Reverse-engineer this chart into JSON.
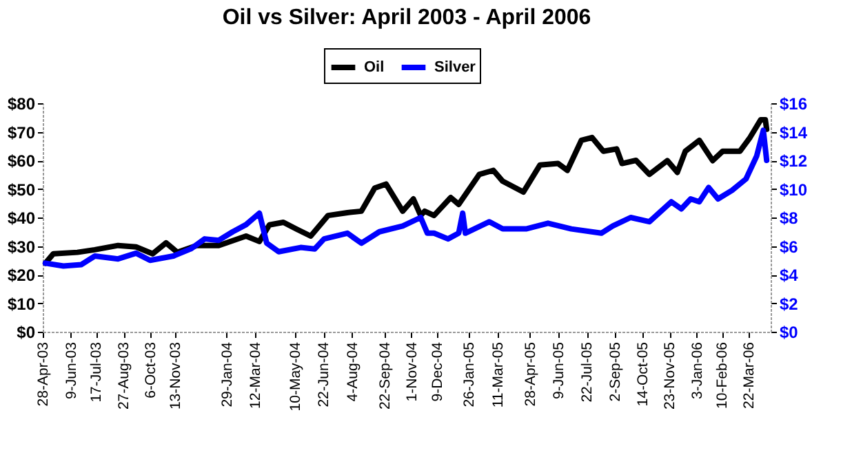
{
  "chart_data": {
    "type": "line",
    "title": "Oil vs Silver: April 2003 - April 2006",
    "legend": "top",
    "grid": false,
    "xlim": [
      "2003-04-28",
      "2006-04-24"
    ],
    "xticks": [
      {
        "value": "2003-04-28",
        "label": "28-Apr-03"
      },
      {
        "value": "2003-06-09",
        "label": "9-Jun-03"
      },
      {
        "value": "2003-07-17",
        "label": "17-Jul-03"
      },
      {
        "value": "2003-08-27",
        "label": "27-Aug-03"
      },
      {
        "value": "2003-10-06",
        "label": "6-Oct-03"
      },
      {
        "value": "2003-11-13",
        "label": "13-Nov-03"
      },
      {
        "value": "2004-01-29",
        "label": "29-Jan-04"
      },
      {
        "value": "2004-03-12",
        "label": "12-Mar-04"
      },
      {
        "value": "2004-05-10",
        "label": "10-May-04"
      },
      {
        "value": "2004-06-22",
        "label": "22-Jun-04"
      },
      {
        "value": "2004-08-04",
        "label": "4-Aug-04"
      },
      {
        "value": "2004-09-22",
        "label": "22-Sep-04"
      },
      {
        "value": "2004-11-01",
        "label": "1-Nov-04"
      },
      {
        "value": "2004-12-09",
        "label": "9-Dec-04"
      },
      {
        "value": "2005-01-26",
        "label": "26-Jan-05"
      },
      {
        "value": "2005-03-11",
        "label": "11-Mar-05"
      },
      {
        "value": "2005-04-28",
        "label": "28-Apr-05"
      },
      {
        "value": "2005-06-09",
        "label": "9-Jun-05"
      },
      {
        "value": "2005-07-22",
        "label": "22-Jul-05"
      },
      {
        "value": "2005-09-02",
        "label": "2-Sep-05"
      },
      {
        "value": "2005-10-14",
        "label": "14-Oct-05"
      },
      {
        "value": "2005-11-23",
        "label": "23-Nov-05"
      },
      {
        "value": "2006-01-03",
        "label": "3-Jan-06"
      },
      {
        "value": "2006-02-10",
        "label": "10-Feb-06"
      },
      {
        "value": "2006-03-22",
        "label": "22-Mar-06"
      }
    ],
    "ylim": [
      0,
      80
    ],
    "yticks": [
      {
        "value": 0,
        "label": "$0"
      },
      {
        "value": 10,
        "label": "$10"
      },
      {
        "value": 20,
        "label": "$20"
      },
      {
        "value": 30,
        "label": "$30"
      },
      {
        "value": 40,
        "label": "$40"
      },
      {
        "value": 50,
        "label": "$50"
      },
      {
        "value": 60,
        "label": "$60"
      },
      {
        "value": 70,
        "label": "$70"
      },
      {
        "value": 80,
        "label": "$80"
      }
    ],
    "y2lim": [
      0,
      16
    ],
    "y2ticks": [
      {
        "value": 0,
        "label": "$0"
      },
      {
        "value": 2,
        "label": "$2"
      },
      {
        "value": 4,
        "label": "$4"
      },
      {
        "value": 6,
        "label": "$6"
      },
      {
        "value": 8,
        "label": "$8"
      },
      {
        "value": 10,
        "label": "$10"
      },
      {
        "value": 12,
        "label": "$12"
      },
      {
        "value": 14,
        "label": "$14"
      },
      {
        "value": 16,
        "label": "$16"
      }
    ],
    "series": [
      {
        "name": "Oil",
        "color": "#000000",
        "x": [
          "2003-05-02",
          "2003-05-14",
          "2003-06-19",
          "2003-07-15",
          "2003-08-19",
          "2003-09-15",
          "2003-10-10",
          "2003-10-30",
          "2003-11-16",
          "2003-12-15",
          "2004-01-17",
          "2004-02-27",
          "2004-03-18",
          "2004-04-02",
          "2004-04-23",
          "2004-05-13",
          "2004-06-03",
          "2004-06-29",
          "2004-07-28",
          "2004-08-18",
          "2004-09-07",
          "2004-09-24",
          "2004-10-19",
          "2004-11-04",
          "2004-11-15",
          "2004-11-21",
          "2004-12-05",
          "2004-12-30",
          "2005-01-11",
          "2005-02-11",
          "2005-03-04",
          "2005-03-18",
          "2005-04-18",
          "2005-05-13",
          "2005-06-09",
          "2005-06-23",
          "2005-07-14",
          "2005-07-30",
          "2005-08-16",
          "2005-09-05",
          "2005-09-13",
          "2005-10-04",
          "2005-10-24",
          "2005-11-20",
          "2005-12-05",
          "2005-12-17",
          "2006-01-07",
          "2006-01-27",
          "2006-02-11",
          "2006-03-09",
          "2006-03-24",
          "2006-04-09",
          "2006-04-16",
          "2006-04-18"
        ],
        "values": [
          24,
          27.3,
          27.8,
          28.7,
          30.2,
          29.7,
          27.3,
          31.1,
          27.8,
          30.2,
          30.2,
          33.5,
          31.6,
          37.4,
          38.3,
          35.9,
          33.5,
          40.7,
          41.7,
          42.2,
          50.3,
          51.7,
          42.2,
          46.5,
          40.7,
          42.2,
          40.7,
          47,
          44.6,
          55.1,
          56.5,
          52.7,
          48.9,
          58.4,
          58.9,
          56.5,
          67,
          68,
          63.2,
          64,
          58.9,
          60,
          55.1,
          59.9,
          55.8,
          63.2,
          67,
          59.9,
          63.2,
          63.2,
          68,
          74.2,
          74.2,
          70.9
        ]
      },
      {
        "name": "Silver",
        "color": "#0000ff",
        "axis": "y2",
        "x": [
          "2003-05-02",
          "2003-05-29",
          "2003-06-25",
          "2003-07-15",
          "2003-08-19",
          "2003-09-15",
          "2003-10-06",
          "2003-11-10",
          "2003-12-06",
          "2003-12-27",
          "2004-01-17",
          "2004-02-07",
          "2004-02-27",
          "2004-03-18",
          "2004-03-29",
          "2004-04-16",
          "2004-05-19",
          "2004-06-09",
          "2004-06-23",
          "2004-07-28",
          "2004-08-18",
          "2004-09-14",
          "2004-10-19",
          "2004-11-15",
          "2004-11-25",
          "2004-12-05",
          "2004-12-26",
          "2005-01-11",
          "2005-01-17",
          "2005-01-21",
          "2005-02-26",
          "2005-03-18",
          "2005-04-22",
          "2005-05-25",
          "2005-06-29",
          "2005-08-13",
          "2005-08-30",
          "2005-09-26",
          "2005-10-24",
          "2005-11-26",
          "2005-12-11",
          "2005-12-25",
          "2006-01-07",
          "2006-01-21",
          "2006-02-04",
          "2006-02-25",
          "2006-03-18",
          "2006-04-03",
          "2006-04-13",
          "2006-04-18"
        ],
        "values": [
          4.8,
          4.6,
          4.7,
          5.3,
          5.1,
          5.5,
          5,
          5.3,
          5.8,
          6.5,
          6.4,
          7,
          7.5,
          8.3,
          6.2,
          5.6,
          5.9,
          5.8,
          6.5,
          6.9,
          6.2,
          7,
          7.4,
          8,
          6.9,
          6.9,
          6.5,
          6.9,
          8.3,
          6.9,
          7.7,
          7.2,
          7.2,
          7.6,
          7.2,
          6.9,
          7.4,
          8,
          7.7,
          9.1,
          8.6,
          9.3,
          9.1,
          10.1,
          9.3,
          9.9,
          10.7,
          12.3,
          14.1,
          12
        ]
      }
    ]
  }
}
